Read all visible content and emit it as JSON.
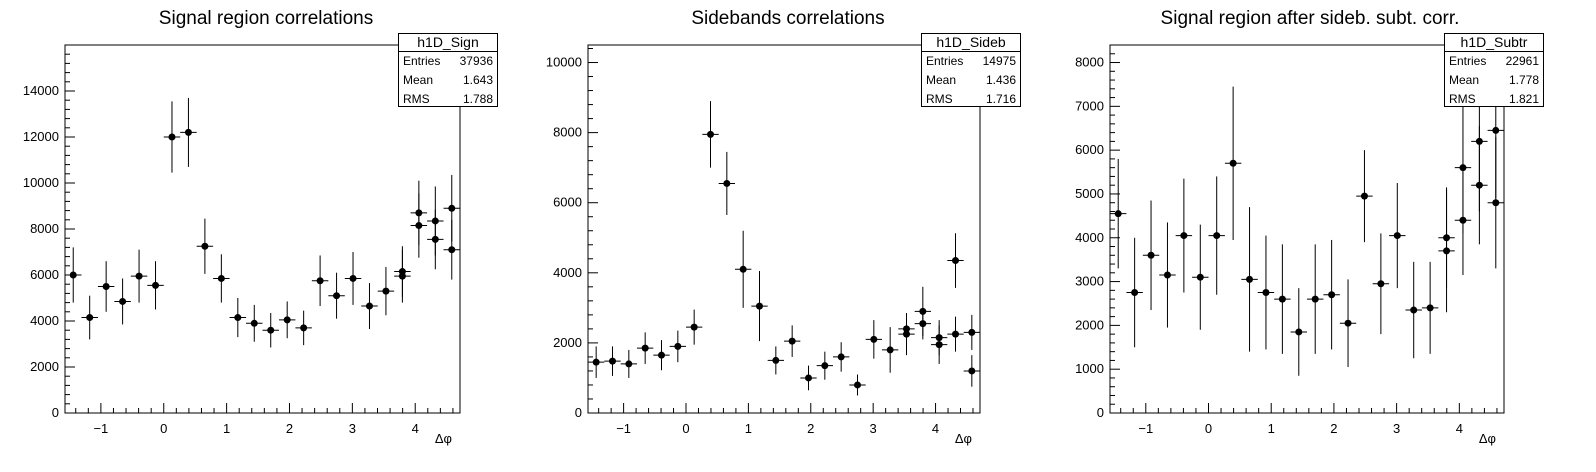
{
  "chart_data": [
    {
      "type": "scatter",
      "title": "Signal region correlations",
      "xlabel": "Δφ",
      "ylabel": "",
      "xlim": [
        -1.5708,
        4.7124
      ],
      "ylim": [
        0,
        16000
      ],
      "x_ticks": [
        -1,
        0,
        1,
        2,
        3,
        4
      ],
      "y_ticks": [
        0,
        2000,
        4000,
        6000,
        8000,
        10000,
        12000,
        14000
      ],
      "x": [
        -1.4399,
        -1.1781,
        -0.9163,
        -0.6545,
        -0.3927,
        -0.1309,
        0.1309,
        0.3927,
        0.6545,
        0.9163,
        1.1781,
        1.4399,
        1.7017,
        1.9635,
        2.2253,
        2.4871,
        2.7489,
        3.0107,
        3.2725,
        3.5343,
        3.7961,
        4.0579,
        4.3197,
        4.5815
      ],
      "x_alt": [
        -1.4399,
        -1.1781,
        -0.9163,
        -0.6545,
        -0.3927,
        -0.1309
      ],
      "series": [
        {
          "x": [
            -1.4399,
            -1.1781,
            -0.9163,
            -0.6545,
            -0.3927,
            -0.1309,
            0.1309,
            0.3927,
            0.6545,
            0.9163,
            1.1781,
            1.4399,
            1.7017,
            1.9635,
            2.2253,
            2.4871,
            2.7489,
            3.0107,
            3.2725,
            3.5343,
            3.7961,
            4.0579,
            4.3197,
            4.5815
          ],
          "y": [
            6000,
            4150,
            5500,
            4850,
            5950,
            5550,
            12000,
            12200,
            7250,
            5850,
            4150,
            3900,
            3600,
            4050,
            3700,
            5750,
            5100,
            5850,
            4650,
            5300,
            5950,
            8700,
            7550,
            8900
          ],
          "err": [
            1200,
            950,
            1100,
            1000,
            1150,
            1050,
            1550,
            1500,
            1200,
            1050,
            850,
            800,
            750,
            800,
            750,
            1100,
            1000,
            1150,
            1000,
            1050,
            1150,
            1400,
            1300,
            1450
          ]
        }
      ],
      "stats": {
        "name": "h1D_Sign",
        "entries": "37936",
        "mean": "1.643",
        "rms": "1.788"
      }
    },
    {
      "type": "scatter",
      "title": "Sidebands correlations",
      "xlabel": "Δφ",
      "ylabel": "",
      "xlim": [
        -1.5708,
        4.7124
      ],
      "ylim": [
        0,
        10500
      ],
      "x_ticks": [
        -1,
        0,
        1,
        2,
        3,
        4
      ],
      "y_ticks": [
        0,
        2000,
        4000,
        6000,
        8000,
        10000
      ],
      "series": [
        {
          "x": [
            -1.4399,
            -1.1781,
            -0.9163,
            -0.6545,
            -0.3927,
            -0.1309,
            0.1309,
            0.3927,
            0.6545,
            0.9163,
            1.1781,
            1.4399,
            1.7017,
            1.9635,
            2.2253,
            2.4871,
            2.7489,
            3.0107,
            3.2725,
            3.5343,
            3.7961,
            4.0579,
            4.3197,
            4.5815
          ],
          "y": [
            1450,
            1480,
            1400,
            1850,
            1650,
            1900,
            2450,
            7950,
            6550,
            4100,
            3050,
            1500,
            2050,
            1000,
            1350,
            1600,
            800,
            2100,
            1800,
            2250,
            2900,
            1950,
            4350,
            2300
          ],
          "err": [
            450,
            420,
            400,
            450,
            430,
            450,
            500,
            950,
            900,
            1100,
            1000,
            400,
            450,
            350,
            400,
            420,
            300,
            550,
            650,
            600,
            700,
            550,
            780,
            500
          ]
        }
      ],
      "stats": {
        "name": "h1D_Sideb",
        "entries": "14975",
        "mean": "1.436",
        "rms": "1.716"
      }
    },
    {
      "type": "scatter",
      "title": "Signal region after sideb. subt. corr.",
      "xlabel": "Δφ",
      "ylabel": "",
      "xlim": [
        -1.5708,
        4.7124
      ],
      "ylim": [
        0,
        8400
      ],
      "x_ticks": [
        -1,
        0,
        1,
        2,
        3,
        4
      ],
      "y_ticks": [
        0,
        1000,
        2000,
        3000,
        4000,
        5000,
        6000,
        7000,
        8000
      ],
      "series": [
        {
          "x": [
            -1.4399,
            -1.1781,
            -0.9163,
            -0.6545,
            -0.3927,
            -0.1309,
            0.1309,
            0.3927,
            0.6545,
            0.9163,
            1.1781,
            1.4399,
            1.7017,
            1.9635,
            2.2253,
            2.4871,
            2.7489,
            3.0107,
            3.2725,
            3.5343,
            3.7961,
            4.0579,
            4.3197,
            4.5815
          ],
          "y": [
            4550,
            2750,
            3600,
            3150,
            4050,
            3100,
            4050,
            5700,
            3050,
            2750,
            2600,
            1850,
            2600,
            2700,
            2050,
            4950,
            2950,
            4050,
            2350,
            2400,
            4000,
            4400,
            5200,
            6450
          ],
          "err": [
            1250,
            1250,
            1250,
            1200,
            1300,
            1200,
            1350,
            1750,
            1650,
            1300,
            1250,
            1000,
            1250,
            1250,
            1000,
            1050,
            1150,
            1200,
            1100,
            1050,
            1150,
            1250,
            1350,
            1550
          ]
        }
      ],
      "stats": {
        "name": "h1D_Subtr",
        "entries": "22961",
        "mean": "1.778",
        "rms": "1.821"
      }
    }
  ],
  "extra_points": [
    {
      "x": [
        3.7961,
        4.0579,
        4.3197,
        4.5815
      ],
      "y": [
        6150,
        8150,
        8350,
        7100
      ],
      "err": [
        1100,
        1400,
        1500,
        1300
      ]
    },
    {
      "x": [
        3.5343,
        3.7961,
        4.0579,
        4.3197,
        4.5815
      ],
      "y": [
        2400,
        2550,
        2150,
        2250,
        1200
      ],
      "err": [
        450,
        450,
        500,
        500,
        450
      ]
    },
    {
      "x": [
        3.7961,
        4.0579,
        4.3197,
        4.5815
      ],
      "y": [
        3700,
        5600,
        6200,
        4800
      ],
      "err": [
        1400,
        1500,
        1600,
        1500
      ]
    }
  ],
  "labels": {
    "entries": "Entries",
    "mean": "Mean",
    "rms": "RMS"
  }
}
